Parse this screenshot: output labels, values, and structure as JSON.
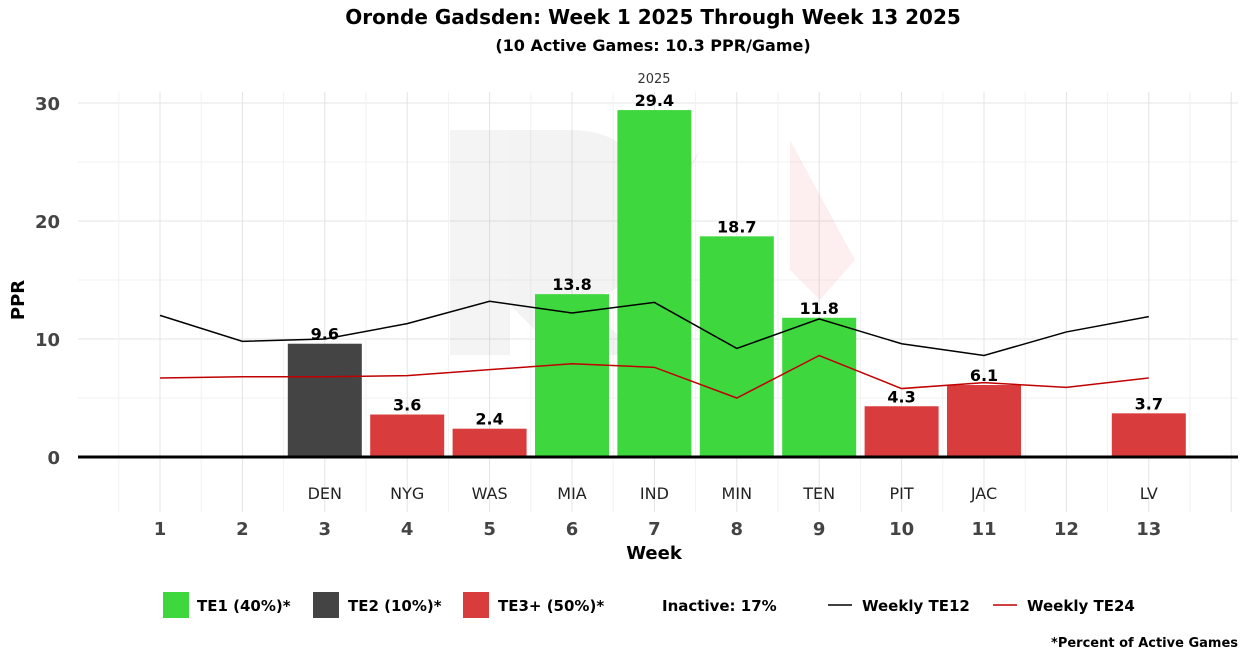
{
  "chart_data": {
    "type": "bar",
    "title": "Oronde Gadsden: Week 1 2025 Through Week 13 2025",
    "subtitle": "(10 Active Games: 10.3 PPR/Game)",
    "facet_label": "2025",
    "xlabel": "Week",
    "ylabel": "PPR",
    "ylim": [
      0,
      30
    ],
    "yticks": [
      0,
      10,
      20,
      30
    ],
    "weeks": [
      1,
      2,
      3,
      4,
      5,
      6,
      7,
      8,
      9,
      10,
      11,
      12,
      13
    ],
    "opponents": [
      "",
      "",
      "DEN",
      "NYG",
      "WAS",
      "MIA",
      "IND",
      "MIN",
      "TEN",
      "PIT",
      "JAC",
      "",
      "LV"
    ],
    "values": [
      null,
      null,
      9.6,
      3.6,
      2.4,
      13.8,
      29.4,
      18.7,
      11.8,
      4.3,
      6.1,
      null,
      3.7
    ],
    "tiers": [
      "",
      "",
      "TE2",
      "TE3+",
      "TE3+",
      "TE1",
      "TE1",
      "TE1",
      "TE1",
      "TE3+",
      "TE3+",
      "",
      "TE3+"
    ],
    "series": [
      {
        "name": "Weekly TE12",
        "type": "line",
        "color": "#000000",
        "values": [
          12.0,
          9.8,
          10.0,
          11.3,
          13.2,
          12.2,
          13.1,
          9.2,
          11.7,
          9.6,
          8.6,
          10.6,
          11.9
        ]
      },
      {
        "name": "Weekly TE24",
        "type": "line",
        "color": "#c00000",
        "values": [
          6.7,
          6.8,
          6.8,
          6.9,
          7.4,
          7.9,
          7.6,
          5.0,
          8.6,
          5.8,
          6.3,
          5.9,
          6.7
        ]
      }
    ],
    "tier_colors": {
      "TE1": "#3ed83e",
      "TE2": "#444444",
      "TE3+": "#d93c3c"
    },
    "legend": {
      "items": [
        {
          "key": "TE1",
          "label": "TE1 (40%)*"
        },
        {
          "key": "TE2",
          "label": "TE2 (10%)*"
        },
        {
          "key": "TE3+",
          "label": "TE3+ (50%)*"
        }
      ],
      "inactive": "Inactive: 17%",
      "te12": "Weekly TE12",
      "te24": "Weekly TE24",
      "position": "bottom"
    },
    "footnote": "*Percent of Active Games",
    "grid": true
  }
}
